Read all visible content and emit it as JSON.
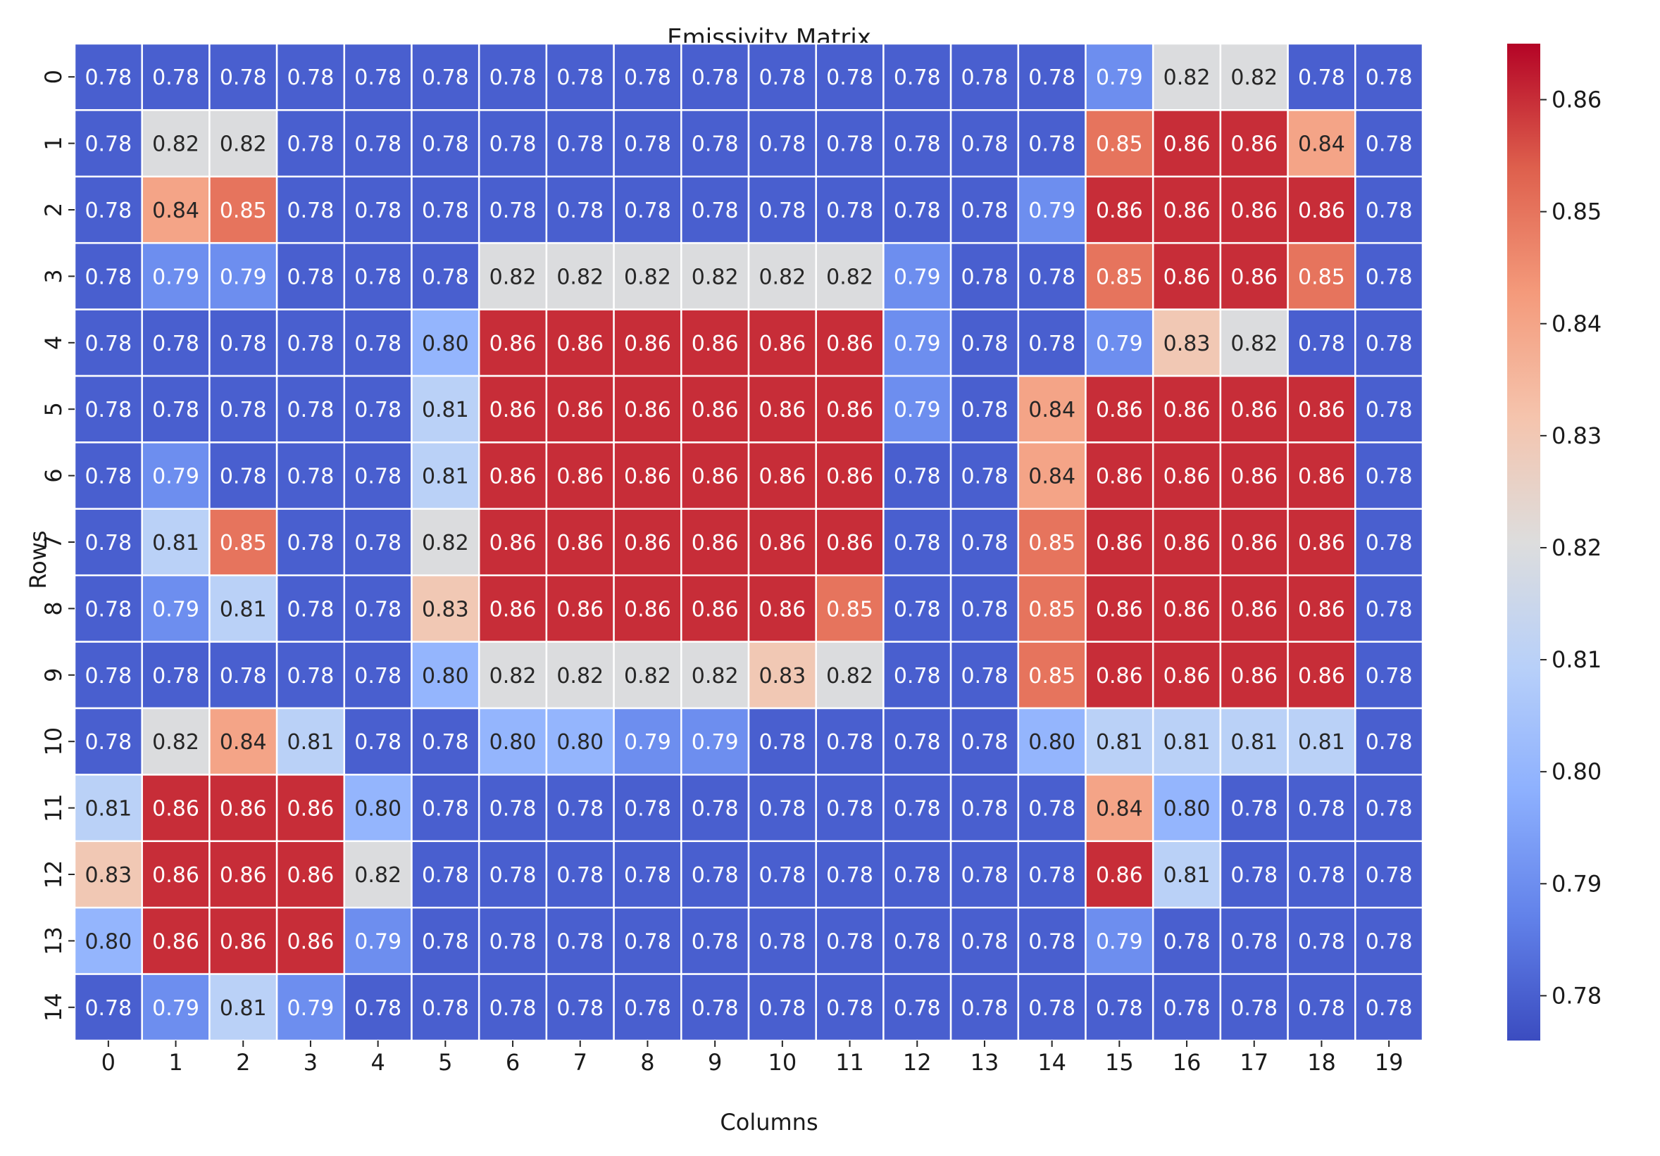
{
  "chart_data": {
    "type": "heatmap",
    "title": "Emissivity Matrix",
    "xlabel": "Columns",
    "ylabel": "Rows",
    "x_categories": [
      "0",
      "1",
      "2",
      "3",
      "4",
      "5",
      "6",
      "7",
      "8",
      "9",
      "10",
      "11",
      "12",
      "13",
      "14",
      "15",
      "16",
      "17",
      "18",
      "19"
    ],
    "y_categories": [
      "0",
      "1",
      "2",
      "3",
      "4",
      "5",
      "6",
      "7",
      "8",
      "9",
      "10",
      "11",
      "12",
      "13",
      "14"
    ],
    "colormap": "coolwarm",
    "vmin": 0.776,
    "vmax": 0.865,
    "grid_line_color": "#ffffff",
    "colorbar": {
      "position": "right",
      "ticks": [
        "0.78",
        "0.79",
        "0.80",
        "0.81",
        "0.82",
        "0.83",
        "0.84",
        "0.85",
        "0.86"
      ]
    },
    "values": [
      [
        0.78,
        0.78,
        0.78,
        0.78,
        0.78,
        0.78,
        0.78,
        0.78,
        0.78,
        0.78,
        0.78,
        0.78,
        0.78,
        0.78,
        0.78,
        0.79,
        0.82,
        0.82,
        0.78,
        0.78
      ],
      [
        0.78,
        0.82,
        0.82,
        0.78,
        0.78,
        0.78,
        0.78,
        0.78,
        0.78,
        0.78,
        0.78,
        0.78,
        0.78,
        0.78,
        0.78,
        0.85,
        0.86,
        0.86,
        0.84,
        0.78
      ],
      [
        0.78,
        0.84,
        0.85,
        0.78,
        0.78,
        0.78,
        0.78,
        0.78,
        0.78,
        0.78,
        0.78,
        0.78,
        0.78,
        0.78,
        0.79,
        0.86,
        0.86,
        0.86,
        0.86,
        0.78
      ],
      [
        0.78,
        0.79,
        0.79,
        0.78,
        0.78,
        0.78,
        0.82,
        0.82,
        0.82,
        0.82,
        0.82,
        0.82,
        0.79,
        0.78,
        0.78,
        0.85,
        0.86,
        0.86,
        0.85,
        0.78
      ],
      [
        0.78,
        0.78,
        0.78,
        0.78,
        0.78,
        0.8,
        0.86,
        0.86,
        0.86,
        0.86,
        0.86,
        0.86,
        0.79,
        0.78,
        0.78,
        0.79,
        0.83,
        0.82,
        0.78,
        0.78
      ],
      [
        0.78,
        0.78,
        0.78,
        0.78,
        0.78,
        0.81,
        0.86,
        0.86,
        0.86,
        0.86,
        0.86,
        0.86,
        0.79,
        0.78,
        0.84,
        0.86,
        0.86,
        0.86,
        0.86,
        0.78
      ],
      [
        0.78,
        0.79,
        0.78,
        0.78,
        0.78,
        0.81,
        0.86,
        0.86,
        0.86,
        0.86,
        0.86,
        0.86,
        0.78,
        0.78,
        0.84,
        0.86,
        0.86,
        0.86,
        0.86,
        0.78
      ],
      [
        0.78,
        0.81,
        0.85,
        0.78,
        0.78,
        0.82,
        0.86,
        0.86,
        0.86,
        0.86,
        0.86,
        0.86,
        0.78,
        0.78,
        0.85,
        0.86,
        0.86,
        0.86,
        0.86,
        0.78
      ],
      [
        0.78,
        0.79,
        0.81,
        0.78,
        0.78,
        0.83,
        0.86,
        0.86,
        0.86,
        0.86,
        0.86,
        0.85,
        0.78,
        0.78,
        0.85,
        0.86,
        0.86,
        0.86,
        0.86,
        0.78
      ],
      [
        0.78,
        0.78,
        0.78,
        0.78,
        0.78,
        0.8,
        0.82,
        0.82,
        0.82,
        0.82,
        0.83,
        0.82,
        0.78,
        0.78,
        0.85,
        0.86,
        0.86,
        0.86,
        0.86,
        0.78
      ],
      [
        0.78,
        0.82,
        0.84,
        0.81,
        0.78,
        0.78,
        0.8,
        0.8,
        0.79,
        0.79,
        0.78,
        0.78,
        0.78,
        0.78,
        0.8,
        0.81,
        0.81,
        0.81,
        0.81,
        0.78
      ],
      [
        0.81,
        0.86,
        0.86,
        0.86,
        0.8,
        0.78,
        0.78,
        0.78,
        0.78,
        0.78,
        0.78,
        0.78,
        0.78,
        0.78,
        0.78,
        0.84,
        0.8,
        0.78,
        0.78,
        0.78
      ],
      [
        0.83,
        0.86,
        0.86,
        0.86,
        0.82,
        0.78,
        0.78,
        0.78,
        0.78,
        0.78,
        0.78,
        0.78,
        0.78,
        0.78,
        0.78,
        0.86,
        0.81,
        0.78,
        0.78,
        0.78
      ],
      [
        0.8,
        0.86,
        0.86,
        0.86,
        0.79,
        0.78,
        0.78,
        0.78,
        0.78,
        0.78,
        0.78,
        0.78,
        0.78,
        0.78,
        0.78,
        0.79,
        0.78,
        0.78,
        0.78,
        0.78
      ],
      [
        0.78,
        0.79,
        0.81,
        0.79,
        0.78,
        0.78,
        0.78,
        0.78,
        0.78,
        0.78,
        0.78,
        0.78,
        0.78,
        0.78,
        0.78,
        0.78,
        0.78,
        0.78,
        0.78,
        0.78
      ]
    ]
  }
}
